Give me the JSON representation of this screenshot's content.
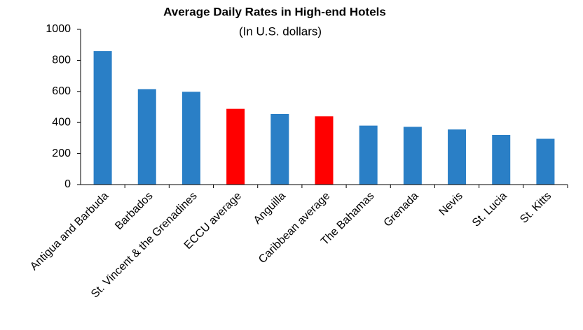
{
  "chart_data": {
    "type": "bar",
    "title": "Average Daily Rates in High-end Hotels",
    "subtitle": "(In U.S. dollars)",
    "categories": [
      "Antigua and Barbuda",
      "Barbados",
      "St. Vincent & the Grenadines",
      "ECCU average",
      "Anguilla",
      "Caribbean average",
      "The Bahamas",
      "Grenada",
      "Nevis",
      "St. Lucia",
      "St. Kitts"
    ],
    "values": [
      860,
      615,
      598,
      488,
      455,
      440,
      380,
      372,
      355,
      320,
      295
    ],
    "colors": [
      "#2a7fc6",
      "#2a7fc6",
      "#2a7fc6",
      "#ff0000",
      "#2a7fc6",
      "#ff0000",
      "#2a7fc6",
      "#2a7fc6",
      "#2a7fc6",
      "#2a7fc6",
      "#2a7fc6"
    ],
    "ylim": [
      0,
      1000
    ],
    "yticks": [
      0,
      200,
      400,
      600,
      800,
      1000
    ],
    "grid": false
  }
}
